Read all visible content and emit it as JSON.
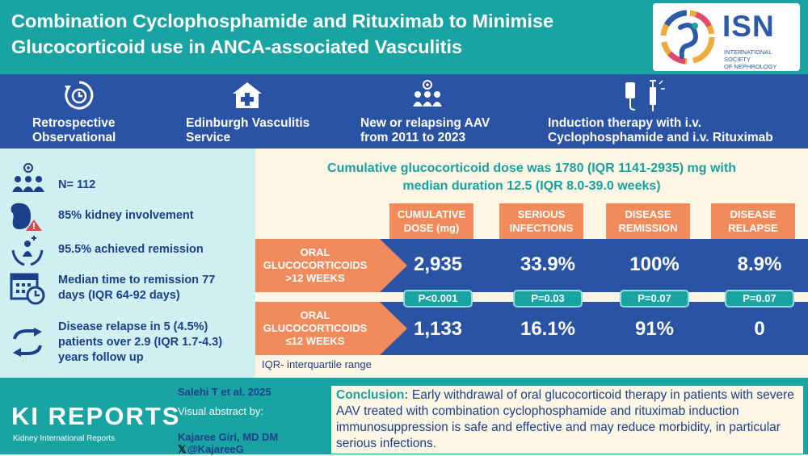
{
  "header": {
    "title_line1": "Combination Cyclophosphamide and Rituximab to Minimise",
    "title_line2": "Glucocorticoid use in ANCA-associated Vasculitis",
    "logo_text": "ISN",
    "logo_sub_line1": "INTERNATIONAL SOCIETY",
    "logo_sub_line2": "OF NEPHROLOGY"
  },
  "band": [
    {
      "icon": "clock-refresh-icon",
      "line1": "Retrospective",
      "line2": "Observational"
    },
    {
      "icon": "hospital-icon",
      "line1": "Edinburgh Vasculitis",
      "line2": "Service"
    },
    {
      "icon": "patients-group-icon",
      "line1": "New or relapsing AAV",
      "line2": "from 2011 to 2023"
    },
    {
      "icon": "iv-syringe-icon",
      "line1": "Induction therapy with i.v.",
      "line2": "Cyclophosphamide and i.v. Rituximab"
    }
  ],
  "stats": [
    {
      "icon": "people-icon",
      "line1": "N= 112",
      "line2": "",
      "line3": ""
    },
    {
      "icon": "kidney-icon",
      "line1": "85% kidney involvement",
      "line2": "",
      "line3": ""
    },
    {
      "icon": "hands-person-icon",
      "line1": "95.5% achieved remission",
      "line2": "",
      "line3": ""
    },
    {
      "icon": "calendar-clock-icon",
      "line1": "Median time to remission 77",
      "line2": "days (IQR 64-92 days)",
      "line3": ""
    },
    {
      "icon": "relapse-arrows-icon",
      "line1": "Disease relapse in 5 (4.5%)",
      "line2": "patients over 2.9 (IQR 1.7-4.3)",
      "line3": "years follow up"
    }
  ],
  "main": {
    "headline_line1": "Cumulative glucocorticoid dose was 1780 (IQR 1141-2935) mg with",
    "headline_line2": "median duration 12.5 (IQR 8.0-39.0 weeks)",
    "columns": [
      {
        "line1": "CUMULATIVE",
        "line2": "DOSE (mg)"
      },
      {
        "line1": "SERIOUS",
        "line2": "INFECTIONS"
      },
      {
        "line1": "DISEASE",
        "line2": "REMISSION"
      },
      {
        "line1": "DISEASE",
        "line2": "RELAPSE"
      }
    ],
    "rows": [
      {
        "line1": "ORAL",
        "line2": "GLUCOCORTICOIDS",
        "line3": ">12 WEEKS",
        "values": [
          "2,935",
          "33.9%",
          "100%",
          "8.9%"
        ]
      },
      {
        "line1": "ORAL",
        "line2": "GLUCOCORTICOIDS",
        "line3": "≤12 WEEKS",
        "values": [
          "1,133",
          "16.1%",
          "91%",
          "0"
        ]
      }
    ],
    "p_values": [
      "P<0.001",
      "P=0.03",
      "P=0.07",
      "P=0.07"
    ],
    "footnote": "IQR- interquartile range"
  },
  "footer": {
    "journal_title": "KI REPORTS",
    "journal_sub": "Kidney International Reports",
    "citation": "Salehi T et al. 2025",
    "visual_abstract_line1": "Visual abstract by:",
    "author": "Kajaree Giri, MD DM",
    "handle": "@KajareeG",
    "conclusion_label": "Conclusion:",
    "conclusion_text": "Early withdrawal of oral glucocorticoid therapy in patients with severe AAV treated with combination cyclophosphamide and rituximab induction immunosuppression is safe and effective and may reduce morbidity, in particular serious infections."
  },
  "colors": {
    "teal": "#1aa3a3",
    "navy": "#2a53a3",
    "orange": "#f28b5b",
    "cream": "#fdf6e4",
    "light_teal": "#cfeff1",
    "dark_text": "#1c3f8a"
  }
}
